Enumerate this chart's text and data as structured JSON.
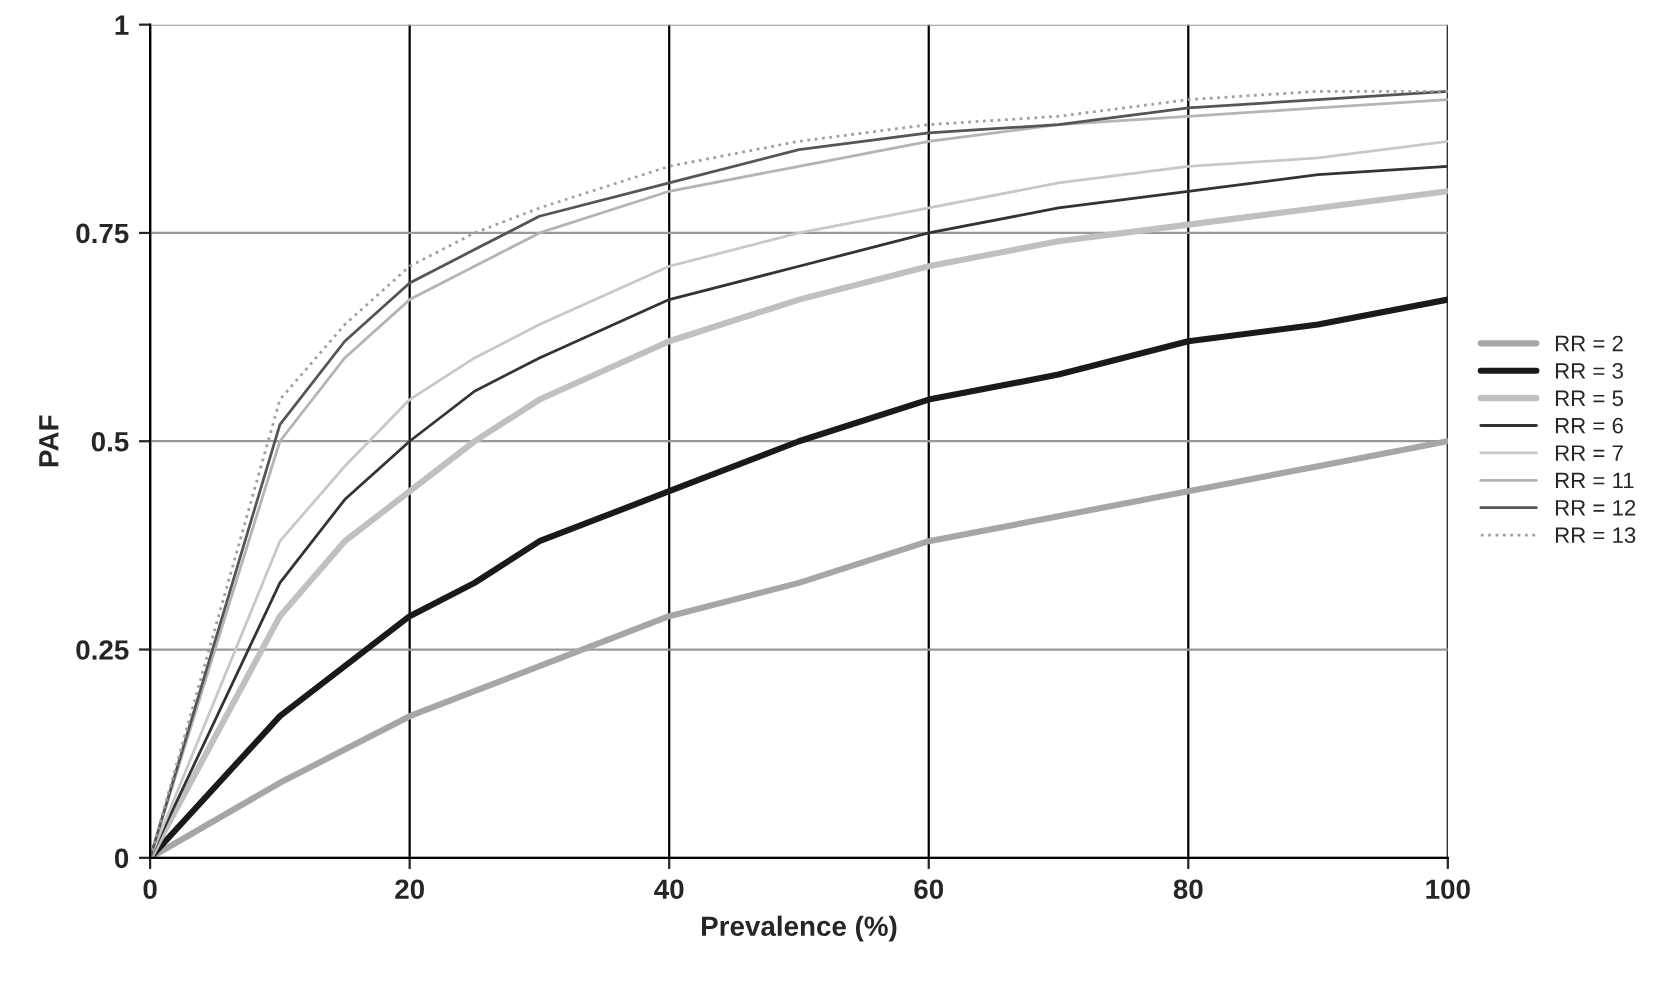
{
  "chart_data": {
    "type": "line",
    "xlabel": "Prevalence (%)",
    "ylabel": "PAF",
    "x": [
      0,
      10,
      15,
      20,
      25,
      30,
      40,
      50,
      60,
      70,
      80,
      90,
      100
    ],
    "series": [
      {
        "name": "RR = 2",
        "color": "#a6a6a6",
        "values": [
          0,
          0.09,
          0.13,
          0.17,
          0.2,
          0.23,
          0.29,
          0.33,
          0.38,
          0.41,
          0.44,
          0.47,
          0.5
        ]
      },
      {
        "name": "RR = 3",
        "color": "#1a1a1a",
        "values": [
          0,
          0.17,
          0.23,
          0.29,
          0.33,
          0.38,
          0.44,
          0.5,
          0.55,
          0.58,
          0.62,
          0.64,
          0.67
        ]
      },
      {
        "name": "RR = 5",
        "color": "#c0c0c0",
        "values": [
          0,
          0.29,
          0.38,
          0.44,
          0.5,
          0.55,
          0.62,
          0.67,
          0.71,
          0.74,
          0.76,
          0.78,
          0.8
        ]
      },
      {
        "name": "RR = 6",
        "color": "#333333",
        "values": [
          0,
          0.33,
          0.43,
          0.5,
          0.56,
          0.6,
          0.67,
          0.71,
          0.75,
          0.78,
          0.8,
          0.82,
          0.83
        ]
      },
      {
        "name": "RR = 7",
        "color": "#c8c8c8",
        "values": [
          0,
          0.38,
          0.47,
          0.55,
          0.6,
          0.64,
          0.71,
          0.75,
          0.78,
          0.81,
          0.83,
          0.84,
          0.86
        ]
      },
      {
        "name": "RR = 11",
        "color": "#b4b4b4",
        "values": [
          0,
          0.5,
          0.6,
          0.67,
          0.71,
          0.75,
          0.8,
          0.83,
          0.86,
          0.88,
          0.89,
          0.9,
          0.91
        ]
      },
      {
        "name": "RR = 12",
        "color": "#555555",
        "values": [
          0,
          0.52,
          0.62,
          0.69,
          0.73,
          0.77,
          0.81,
          0.85,
          0.87,
          0.88,
          0.9,
          0.91,
          0.92
        ]
      },
      {
        "name": "RR = 13",
        "color": "#a0a0a0",
        "line_style": "dotted",
        "values": [
          0,
          0.55,
          0.64,
          0.71,
          0.75,
          0.78,
          0.83,
          0.86,
          0.88,
          0.89,
          0.91,
          0.92,
          0.92
        ]
      }
    ],
    "xlim": [
      0,
      100
    ],
    "xticks": [
      0,
      20,
      40,
      60,
      80,
      100
    ],
    "ylim": [
      0,
      1
    ],
    "yticks": [
      0,
      0.25,
      0.5,
      0.75,
      1
    ],
    "grid": true,
    "legend": "right"
  }
}
